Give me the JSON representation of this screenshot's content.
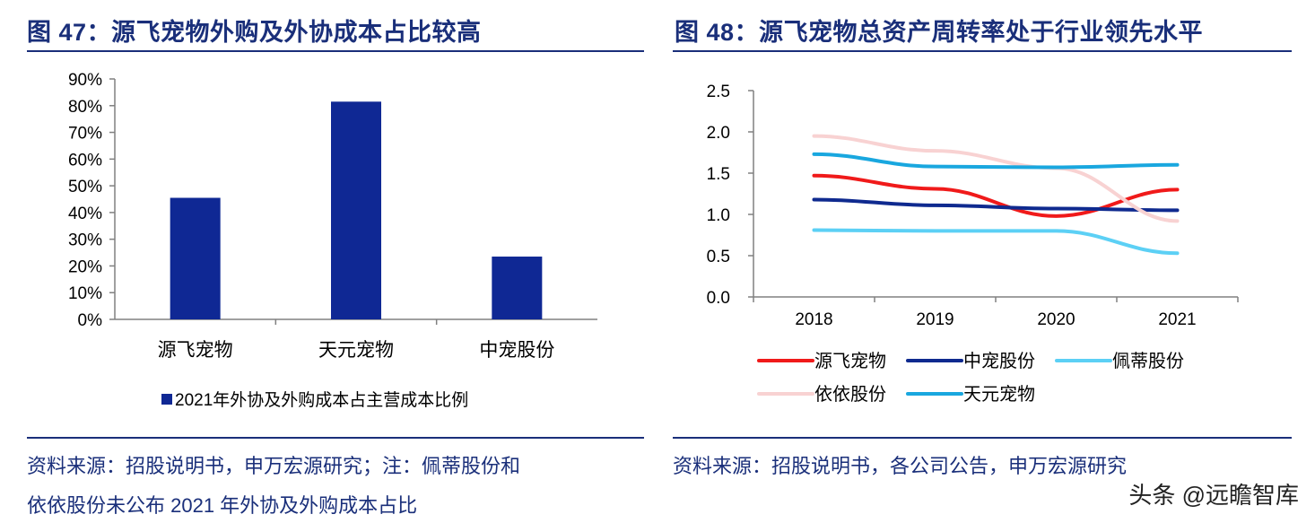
{
  "left": {
    "title": "图 47：源飞宠物外购及外协成本占比较高",
    "source_line1": "资料来源：招股说明书，申万宏源研究；注：佩蒂股份和",
    "source_line2": "依依股份未公布 2021 年外协及外购成本占比",
    "chart_data": {
      "type": "bar",
      "categories": [
        "源飞宠物",
        "天元宠物",
        "中宠股份"
      ],
      "series": [
        {
          "name": "2021年外协及外购成本占主营成本比例",
          "values": [
            45.5,
            81.5,
            23.5
          ],
          "color": "#0f2894"
        }
      ],
      "yticks": [
        "0%",
        "10%",
        "20%",
        "30%",
        "40%",
        "50%",
        "60%",
        "70%",
        "80%",
        "90%"
      ],
      "ylim": [
        0,
        90
      ],
      "legend_position": "bottom",
      "grid": false
    }
  },
  "right": {
    "title": "图 48：源飞宠物总资产周转率处于行业领先水平",
    "source_line1": "资料来源：招股说明书，各公司公告，申万宏源研究",
    "chart_data": {
      "type": "line",
      "x": [
        "2018",
        "2019",
        "2020",
        "2021"
      ],
      "series": [
        {
          "name": "源飞宠物",
          "values": [
            1.47,
            1.31,
            0.98,
            1.3
          ],
          "color": "#f01a1a"
        },
        {
          "name": "中宠股份",
          "values": [
            1.18,
            1.11,
            1.07,
            1.05
          ],
          "color": "#0f2a8f"
        },
        {
          "name": "佩蒂股份",
          "values": [
            0.81,
            0.8,
            0.8,
            0.53
          ],
          "color": "#5cd0f5"
        },
        {
          "name": "依依股份",
          "values": [
            1.95,
            1.77,
            1.56,
            0.92
          ],
          "color": "#f8d2d2"
        },
        {
          "name": "天元宠物",
          "values": [
            1.73,
            1.58,
            1.57,
            1.6
          ],
          "color": "#19a7df"
        }
      ],
      "yticks": [
        "0.0",
        "0.5",
        "1.0",
        "1.5",
        "2.0",
        "2.5"
      ],
      "ylim": [
        0,
        2.5
      ],
      "legend_position": "bottom",
      "grid": false
    }
  },
  "watermark": "头条 @远瞻智库"
}
